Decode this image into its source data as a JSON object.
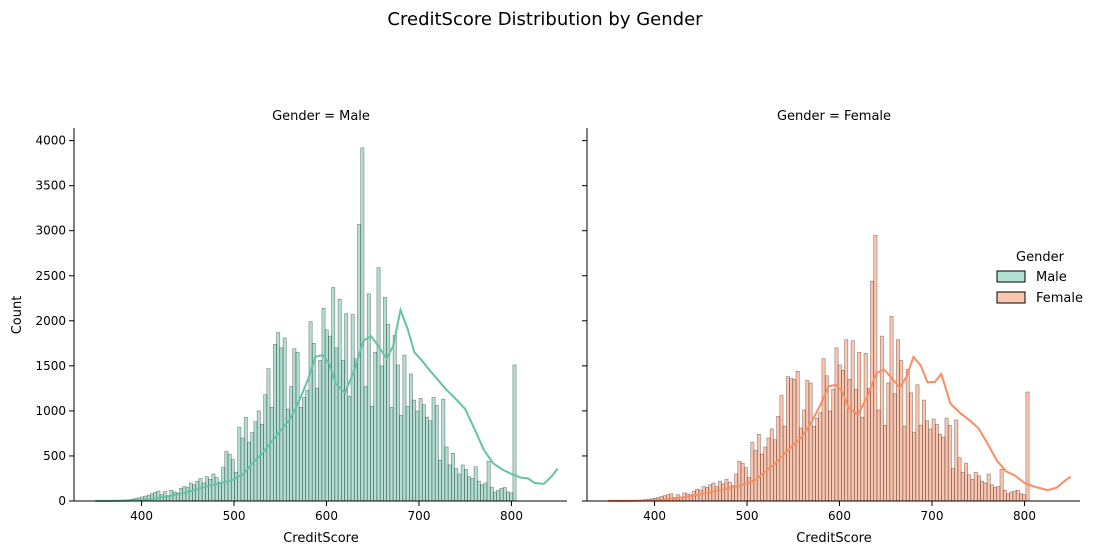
{
  "chart_data": {
    "type": "bar",
    "title": "CreditScore Distribution by Gender",
    "xlabel": "CreditScore",
    "ylabel": "Count",
    "xlim": [
      327,
      860
    ],
    "ylim": [
      0,
      4140
    ],
    "xticks": [
      400,
      500,
      600,
      700,
      800
    ],
    "yticks": [
      0,
      500,
      1000,
      1500,
      2000,
      2500,
      3000,
      3500,
      4000
    ],
    "bin_start": 350,
    "bin_width": 3.5,
    "legend": {
      "title": "Gender",
      "placement": "center-right",
      "entries": [
        "Male",
        "Female"
      ]
    },
    "colors": {
      "Male": "#66c2a5",
      "Female": "#fc8d62"
    },
    "series": [
      {
        "name": "Male",
        "panel_title": "Gender = Male",
        "values": [
          3,
          2,
          3,
          3,
          4,
          5,
          6,
          8,
          10,
          12,
          15,
          20,
          30,
          35,
          45,
          55,
          65,
          80,
          95,
          110,
          70,
          105,
          60,
          120,
          100,
          90,
          140,
          160,
          150,
          200,
          180,
          220,
          250,
          200,
          270,
          240,
          300,
          260,
          210,
          370,
          550,
          520,
          460,
          320,
          820,
          700,
          930,
          650,
          760,
          880,
          1000,
          850,
          1180,
          1470,
          1040,
          1740,
          1870,
          1700,
          1810,
          1020,
          1270,
          1690,
          1650,
          1040,
          1150,
          1230,
          1990,
          1750,
          1250,
          1560,
          2140,
          1900,
          1830,
          2370,
          1700,
          2240,
          1560,
          2080,
          1160,
          2070,
          1580,
          3070,
          3920,
          1270,
          2300,
          1050,
          1650,
          2590,
          1500,
          2260,
          1960,
          1040,
          1840,
          1510,
          950,
          1620,
          1050,
          1410,
          1120,
          1000,
          1140,
          1070,
          930,
          890,
          1150,
          1060,
          450,
          1130,
          600,
          400,
          530,
          360,
          300,
          400,
          350,
          270,
          250,
          380,
          220,
          180,
          200,
          440,
          150,
          100,
          120,
          140,
          150,
          100,
          90,
          1510
        ],
        "kde": [
          [
            350,
            2
          ],
          [
            370,
            2
          ],
          [
            390,
            5
          ],
          [
            410,
            20
          ],
          [
            430,
            55
          ],
          [
            450,
            100
          ],
          [
            470,
            160
          ],
          [
            490,
            210
          ],
          [
            500,
            240
          ],
          [
            510,
            300
          ],
          [
            520,
            420
          ],
          [
            530,
            520
          ],
          [
            540,
            650
          ],
          [
            550,
            780
          ],
          [
            560,
            900
          ],
          [
            570,
            1100
          ],
          [
            580,
            1350
          ],
          [
            588,
            1600
          ],
          [
            596,
            1620
          ],
          [
            603,
            1520
          ],
          [
            610,
            1300
          ],
          [
            620,
            1200
          ],
          [
            630,
            1450
          ],
          [
            640,
            1780
          ],
          [
            648,
            1830
          ],
          [
            656,
            1720
          ],
          [
            665,
            1580
          ],
          [
            672,
            1720
          ],
          [
            680,
            2120
          ],
          [
            688,
            1900
          ],
          [
            695,
            1650
          ],
          [
            703,
            1560
          ],
          [
            710,
            1470
          ],
          [
            720,
            1350
          ],
          [
            730,
            1230
          ],
          [
            740,
            1130
          ],
          [
            750,
            1020
          ],
          [
            760,
            800
          ],
          [
            770,
            570
          ],
          [
            780,
            420
          ],
          [
            790,
            350
          ],
          [
            800,
            300
          ],
          [
            810,
            260
          ],
          [
            818,
            250
          ],
          [
            825,
            200
          ],
          [
            835,
            190
          ],
          [
            843,
            270
          ],
          [
            850,
            360
          ]
        ]
      },
      {
        "name": "Female",
        "panel_title": "Gender = Female",
        "values": [
          2,
          2,
          3,
          3,
          4,
          5,
          6,
          7,
          8,
          10,
          12,
          16,
          20,
          25,
          30,
          40,
          50,
          60,
          70,
          80,
          40,
          70,
          45,
          90,
          80,
          70,
          110,
          130,
          120,
          160,
          150,
          180,
          200,
          160,
          220,
          190,
          240,
          210,
          170,
          300,
          440,
          420,
          370,
          260,
          650,
          560,
          740,
          520,
          600,
          700,
          800,
          680,
          940,
          1170,
          830,
          1380,
          1360,
          1350,
          1440,
          810,
          1010,
          1340,
          1310,
          830,
          920,
          980,
          1580,
          1390,
          1000,
          1240,
          1700,
          1510,
          1450,
          1790,
          1350,
          1780,
          1240,
          1650,
          930,
          1640,
          1250,
          2440,
          2950,
          1010,
          1830,
          840,
          1310,
          2050,
          1190,
          1790,
          1560,
          830,
          1460,
          1200,
          760,
          1290,
          840,
          1120,
          890,
          800,
          910,
          850,
          740,
          710,
          920,
          840,
          360,
          900,
          480,
          320,
          420,
          290,
          240,
          320,
          280,
          220,
          200,
          300,
          180,
          150,
          160,
          350,
          120,
          80,
          100,
          110,
          120,
          80,
          70,
          1210
        ],
        "kde": [
          [
            350,
            2
          ],
          [
            370,
            2
          ],
          [
            390,
            4
          ],
          [
            410,
            15
          ],
          [
            430,
            40
          ],
          [
            450,
            75
          ],
          [
            470,
            120
          ],
          [
            490,
            165
          ],
          [
            500,
            195
          ],
          [
            510,
            240
          ],
          [
            520,
            330
          ],
          [
            530,
            410
          ],
          [
            540,
            520
          ],
          [
            550,
            620
          ],
          [
            560,
            720
          ],
          [
            570,
            880
          ],
          [
            580,
            1080
          ],
          [
            588,
            1270
          ],
          [
            596,
            1290
          ],
          [
            603,
            1210
          ],
          [
            610,
            1030
          ],
          [
            620,
            960
          ],
          [
            630,
            1160
          ],
          [
            640,
            1420
          ],
          [
            648,
            1460
          ],
          [
            656,
            1370
          ],
          [
            665,
            1260
          ],
          [
            672,
            1370
          ],
          [
            680,
            1600
          ],
          [
            688,
            1500
          ],
          [
            695,
            1320
          ],
          [
            703,
            1320
          ],
          [
            710,
            1410
          ],
          [
            720,
            1080
          ],
          [
            730,
            980
          ],
          [
            740,
            900
          ],
          [
            750,
            810
          ],
          [
            760,
            640
          ],
          [
            770,
            450
          ],
          [
            780,
            330
          ],
          [
            790,
            280
          ],
          [
            800,
            200
          ],
          [
            810,
            160
          ],
          [
            818,
            140
          ],
          [
            825,
            120
          ],
          [
            835,
            150
          ],
          [
            843,
            220
          ],
          [
            850,
            270
          ]
        ]
      }
    ]
  }
}
